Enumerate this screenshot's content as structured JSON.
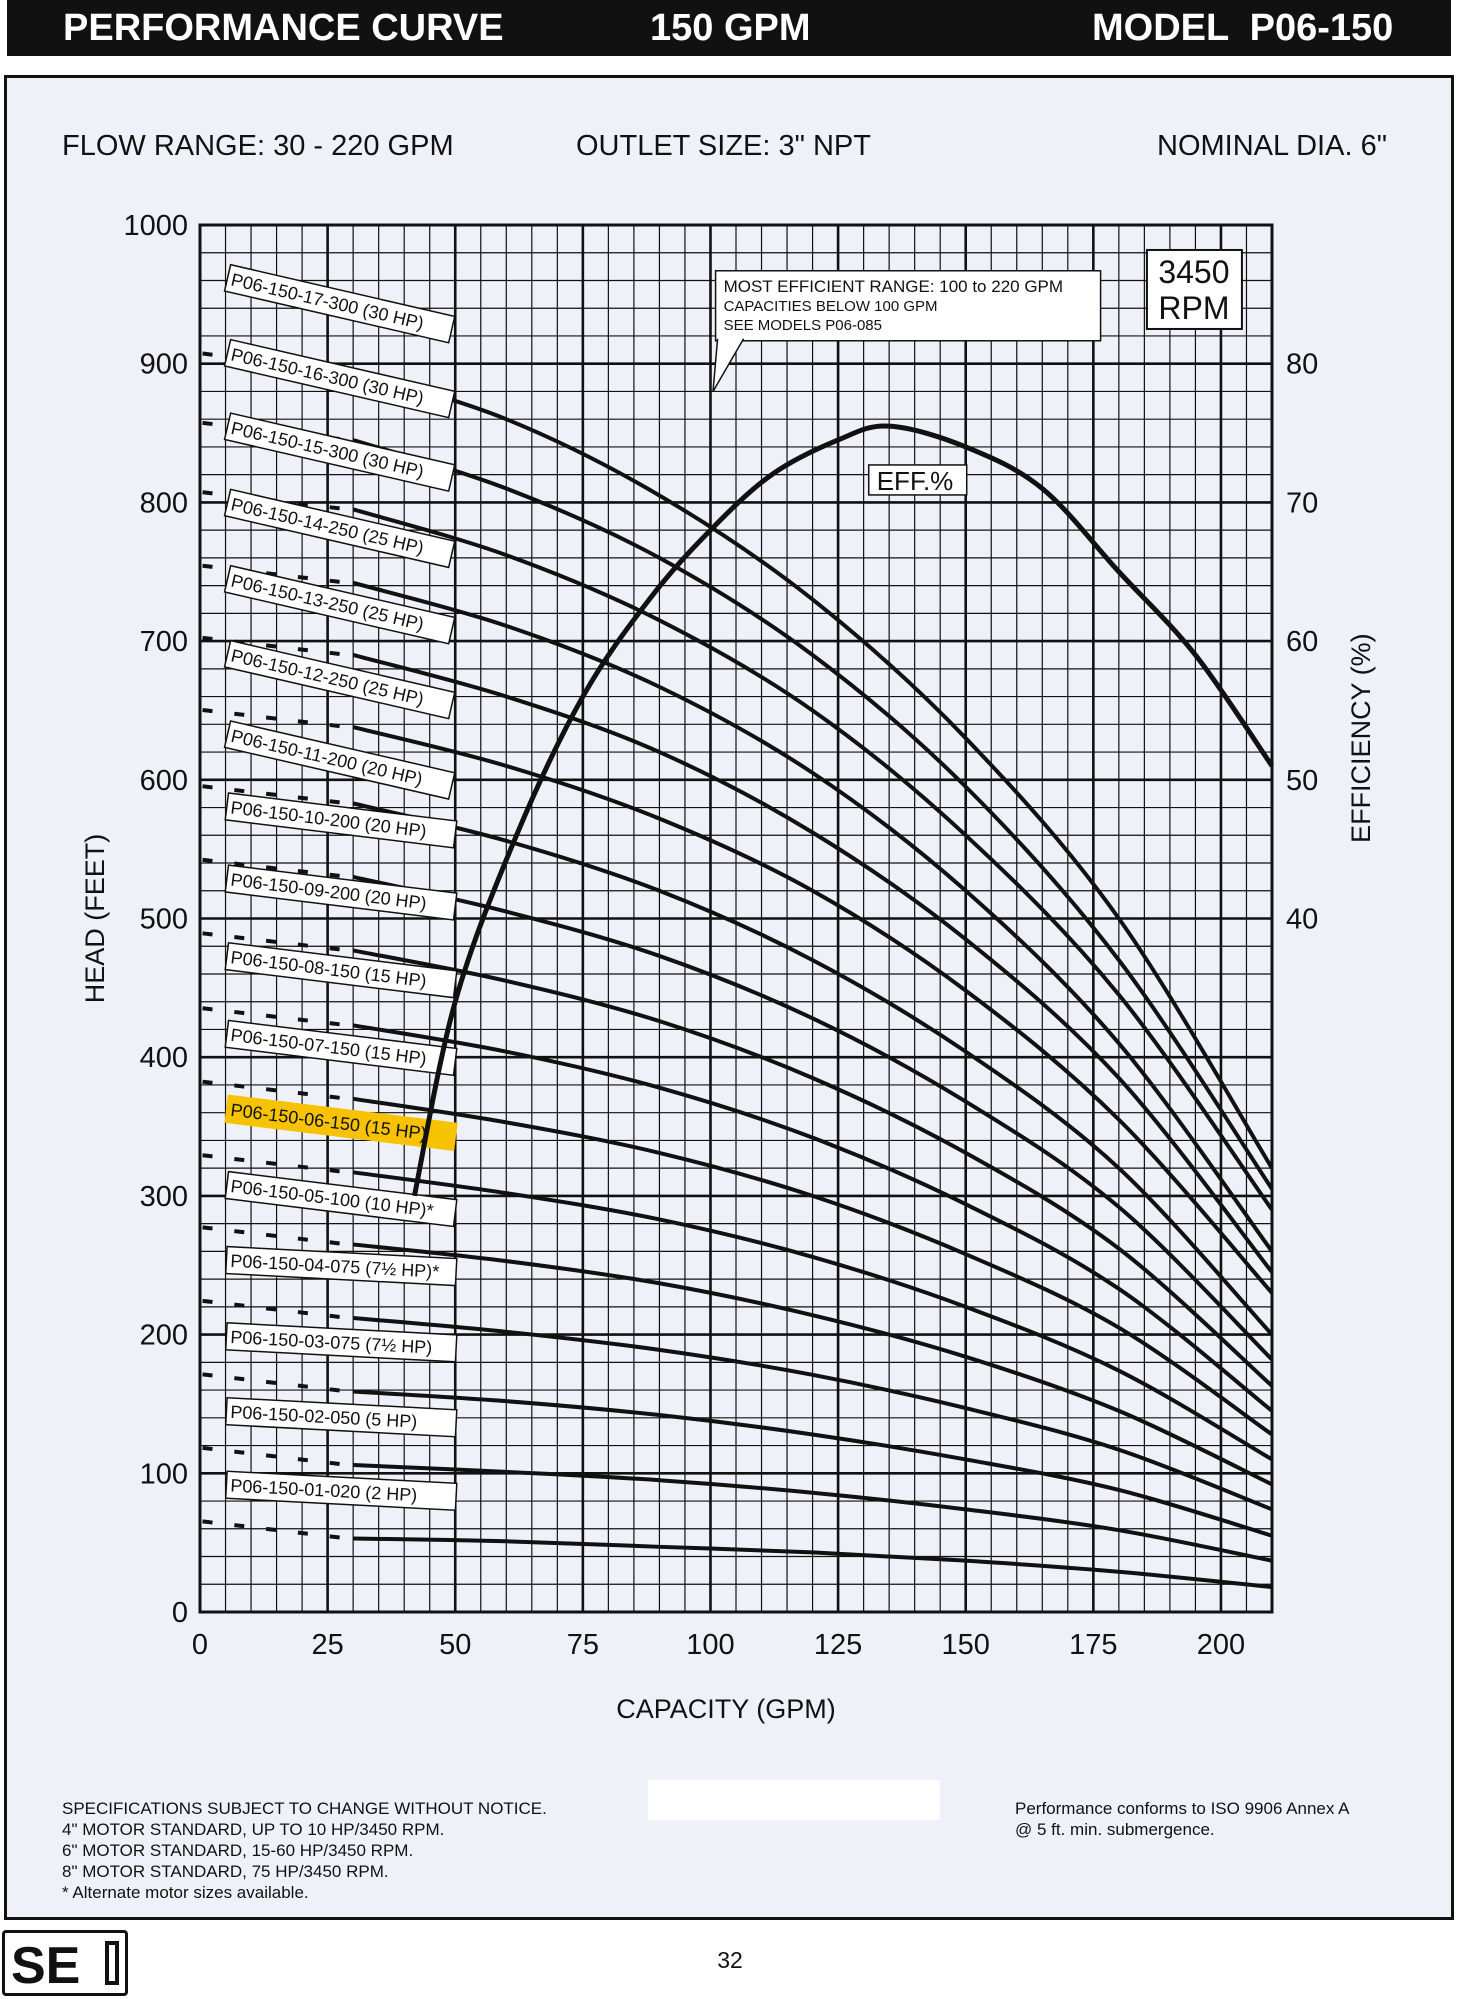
{
  "header": {
    "title": "PERFORMANCE CURVE",
    "flow": "150 GPM",
    "model": "MODEL  P06-150"
  },
  "info": {
    "flow_range": "FLOW RANGE: 30 - 220 GPM",
    "outlet_size": "OUTLET SIZE: 3\" NPT",
    "nominal_dia": "NOMINAL DIA. 6\""
  },
  "chart_data": {
    "type": "line",
    "title": "",
    "xlabel": "CAPACITY (GPM)",
    "ylabel": "HEAD (FEET)",
    "y2label": "EFFICIENCY (%)",
    "xlim": [
      0,
      210
    ],
    "ylim": [
      0,
      1000
    ],
    "x_ticks": [
      0,
      25,
      50,
      75,
      100,
      125,
      150,
      175,
      200
    ],
    "y_ticks": [
      0,
      100,
      200,
      300,
      400,
      500,
      600,
      700,
      800,
      900,
      1000
    ],
    "y2_ticks": [
      40,
      50,
      60,
      70,
      80
    ],
    "y2_ticks_head": [
      500,
      600,
      700,
      800,
      900
    ],
    "speed_box": [
      "3450",
      "RPM"
    ],
    "note_lines": [
      "MOST EFFICIENT RANGE: 100 to 220 GPM",
      "CAPACITIES BELOW 100 GPM",
      "SEE MODELS  P06-085"
    ],
    "highlight_color": "#f7c200",
    "series": [
      {
        "name": "P06-150-17-300 (30 HP)",
        "x": [
          30,
          60,
          90,
          120,
          150,
          180,
          210
        ],
        "y": [
          895,
          860,
          805,
          730,
          630,
          500,
          320
        ],
        "label_head": 957
      },
      {
        "name": "P06-150-16-300 (30 HP)",
        "x": [
          30,
          60,
          90,
          120,
          150,
          180,
          210
        ],
        "y": [
          845,
          810,
          760,
          690,
          595,
          470,
          305
        ],
        "label_head": 903
      },
      {
        "name": "P06-150-15-300 (30 HP)",
        "x": [
          30,
          60,
          90,
          120,
          150,
          180,
          210
        ],
        "y": [
          795,
          762,
          715,
          650,
          560,
          445,
          290
        ],
        "label_head": 850
      },
      {
        "name": "P06-150-14-250 (25 HP)",
        "x": [
          30,
          60,
          90,
          120,
          150,
          180,
          210
        ],
        "y": [
          742,
          711,
          667,
          605,
          520,
          410,
          260
        ],
        "label_head": 795
      },
      {
        "name": "P06-150-13-250 (25 HP)",
        "x": [
          30,
          60,
          90,
          120,
          150,
          180,
          210
        ],
        "y": [
          690,
          660,
          620,
          562,
          485,
          385,
          245
        ],
        "label_head": 740
      },
      {
        "name": "P06-150-12-250 (25 HP)",
        "x": [
          30,
          60,
          90,
          120,
          150,
          180,
          210
        ],
        "y": [
          638,
          610,
          572,
          520,
          448,
          355,
          230
        ],
        "label_head": 686
      },
      {
        "name": "P06-150-11-200 (20 HP)",
        "x": [
          30,
          60,
          90,
          120,
          150,
          180,
          210
        ],
        "y": [
          583,
          556,
          520,
          470,
          404,
          320,
          200
        ],
        "label_head": 628
      },
      {
        "name": "P06-150-10-200 (20 HP)",
        "x": [
          30,
          60,
          90,
          120,
          150,
          180,
          210
        ],
        "y": [
          530,
          505,
          473,
          428,
          368,
          292,
          182
        ],
        "label_head": 576
      },
      {
        "name": "P06-150-09-200 (20 HP)",
        "x": [
          30,
          60,
          90,
          120,
          150,
          180,
          210
        ],
        "y": [
          477,
          455,
          426,
          385,
          331,
          262,
          163
        ],
        "label_head": 524
      },
      {
        "name": "P06-150-08-150 (15 HP)",
        "x": [
          30,
          60,
          90,
          120,
          150,
          180,
          210
        ],
        "y": [
          423,
          404,
          378,
          342,
          294,
          233,
          145
        ],
        "label_head": 468
      },
      {
        "name": "P06-150-07-150 (15 HP)",
        "x": [
          30,
          60,
          90,
          120,
          150,
          180,
          210
        ],
        "y": [
          370,
          353,
          331,
          300,
          258,
          205,
          128
        ],
        "label_head": 412
      },
      {
        "name": "P06-150-06-150 (15 HP)",
        "x": [
          30,
          60,
          90,
          120,
          150,
          180,
          210
        ],
        "y": [
          317,
          302,
          283,
          256,
          220,
          174,
          110
        ],
        "label_head": 358,
        "highlighted": true
      },
      {
        "name": "P06-150-05-100 (10 HP)*",
        "x": [
          30,
          60,
          90,
          120,
          150,
          180,
          210
        ],
        "y": [
          265,
          253,
          237,
          214,
          184,
          145,
          92
        ],
        "label_head": 303
      },
      {
        "name": "P06-150-04-075 (7½ HP)*",
        "x": [
          30,
          60,
          90,
          120,
          150,
          180,
          210
        ],
        "y": [
          212,
          202,
          189,
          171,
          147,
          117,
          74
        ],
        "label_head": 249
      },
      {
        "name": "P06-150-03-075 (7½ HP)",
        "x": [
          30,
          60,
          90,
          120,
          150,
          180,
          210
        ],
        "y": [
          159,
          152,
          142,
          128,
          110,
          88,
          55
        ],
        "label_head": 194
      },
      {
        "name": "P06-150-02-050 (5 HP)",
        "x": [
          30,
          60,
          90,
          120,
          150,
          180,
          210
        ],
        "y": [
          106,
          101,
          95,
          86,
          74,
          59,
          37
        ],
        "label_head": 140
      },
      {
        "name": "P06-150-01-020 (2 HP)",
        "x": [
          30,
          60,
          90,
          120,
          150,
          180,
          210
        ],
        "y": [
          53,
          51,
          47,
          43,
          37,
          29,
          18
        ],
        "label_head": 87
      }
    ],
    "efficiency": {
      "name": "EFF.%",
      "x": [
        42,
        50,
        62,
        75,
        88,
        100,
        112,
        125,
        135,
        150,
        165,
        180,
        195,
        210
      ],
      "y": [
        20,
        34,
        46,
        56,
        63,
        68,
        72,
        74.5,
        75.5,
        74,
        71,
        65,
        59,
        51
      ]
    }
  },
  "footer": {
    "specs": [
      "SPECIFICATIONS SUBJECT TO CHANGE WITHOUT NOTICE.",
      "4\" MOTOR STANDARD, UP TO 10 HP/3450 RPM.",
      "6\" MOTOR STANDARD, 15-60 HP/3450 RPM.",
      "8\" MOTOR STANDARD, 75 HP/3450 RPM.",
      "* Alternate motor sizes available."
    ],
    "iso": [
      "Performance conforms to ISO 9906 Annex A",
      "@ 5 ft. min. submergence."
    ],
    "logo_text": "SE",
    "page": "32"
  }
}
